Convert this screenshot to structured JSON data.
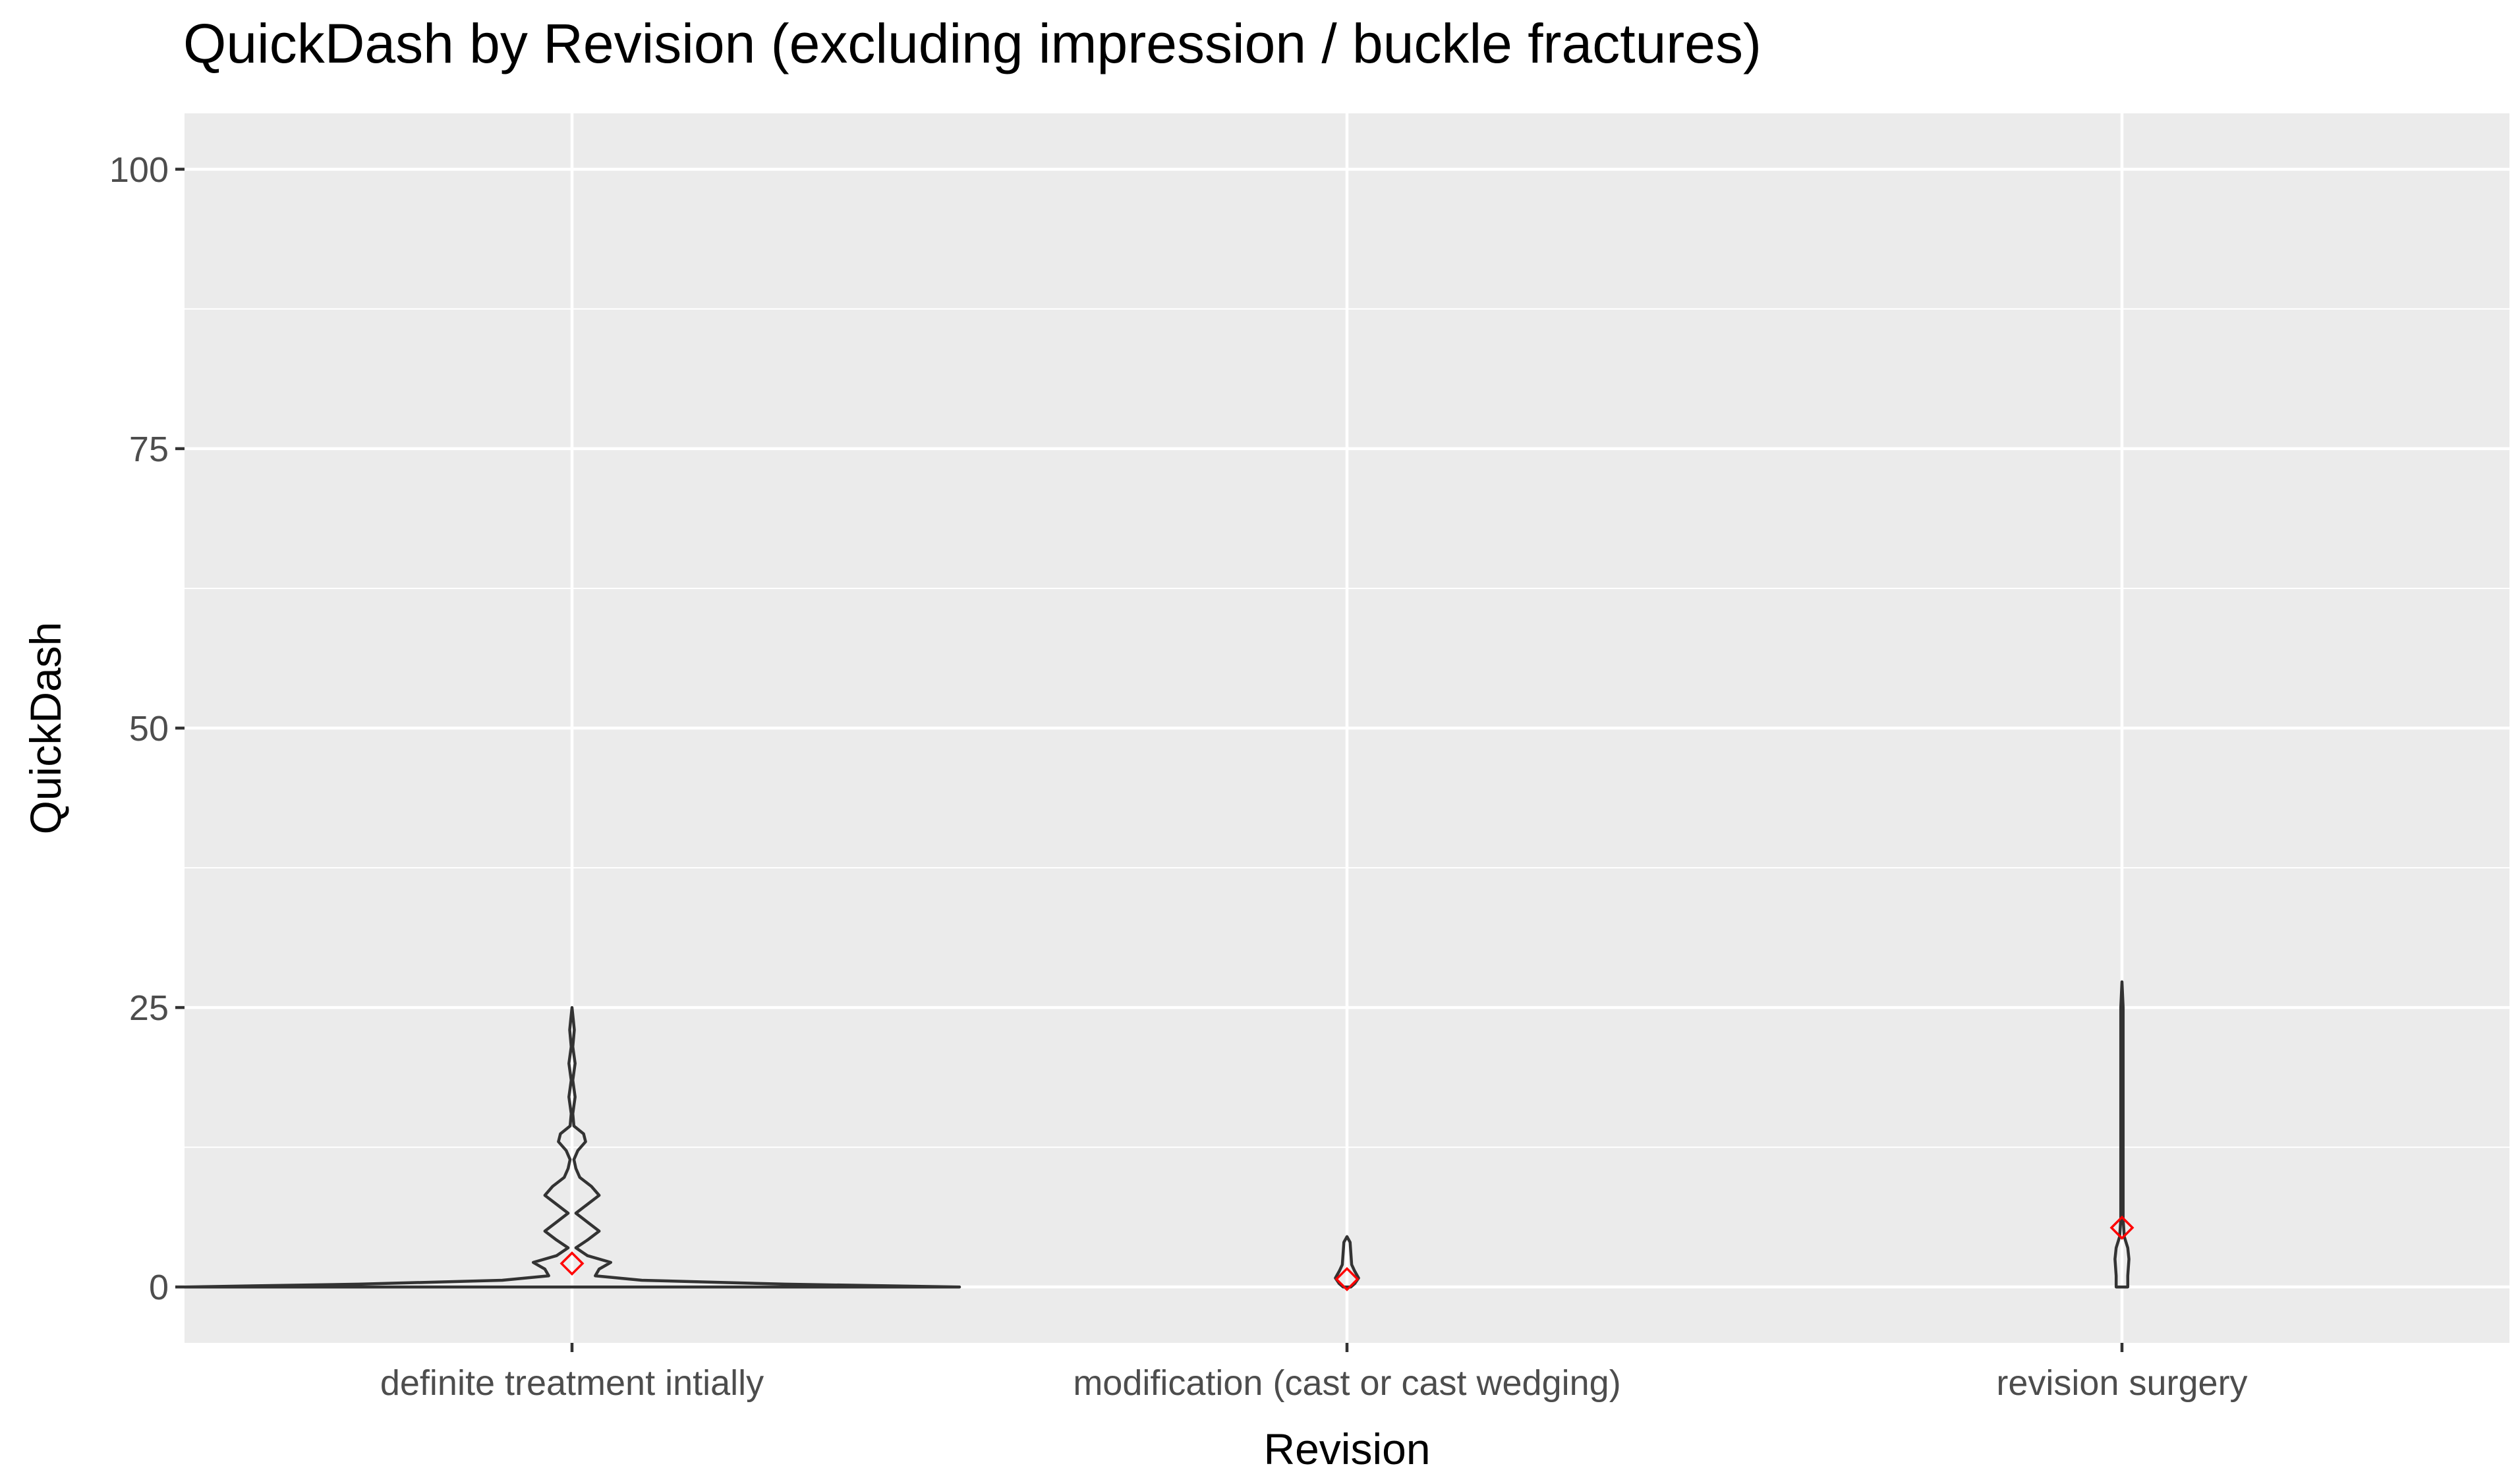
{
  "chart_data": {
    "type": "violin",
    "title": "QuickDash by Revision (excluding impression / buckle fractures)",
    "xlabel": "Revision",
    "ylabel": "QuickDash",
    "ylim": [
      -5,
      105
    ],
    "yticks": [
      0,
      25,
      50,
      75,
      100
    ],
    "categories": [
      "definite treatment intially",
      "modification (cast or cast wedging)",
      "revision surgery"
    ],
    "grid": true,
    "legend": "none",
    "colors": {
      "panel": "#ebebeb",
      "grid": "#ffffff",
      "outline": "#333333",
      "mean_marker": "#ff0000",
      "tick_label": "#4d4d4d"
    },
    "violins": [
      {
        "category": "definite treatment intially",
        "mean": 2.1,
        "min": 0,
        "max": 25,
        "density_profile": [
          [
            0,
            1.0
          ],
          [
            0.25,
            0.55
          ],
          [
            0.6,
            0.18
          ],
          [
            1.0,
            0.06
          ],
          [
            1.6,
            0.07
          ],
          [
            2.2,
            0.1
          ],
          [
            2.8,
            0.04
          ],
          [
            3.5,
            0.01
          ],
          [
            4.2,
            0.04
          ],
          [
            5.0,
            0.07
          ],
          [
            5.8,
            0.04
          ],
          [
            6.6,
            0.01
          ],
          [
            7.4,
            0.04
          ],
          [
            8.2,
            0.07
          ],
          [
            9.0,
            0.05
          ],
          [
            9.8,
            0.02
          ],
          [
            10.6,
            0.01
          ],
          [
            11.4,
            0.005
          ],
          [
            12.2,
            0.015
          ],
          [
            13.0,
            0.035
          ],
          [
            13.7,
            0.03
          ],
          [
            14.4,
            0.005
          ],
          [
            15.5,
            0.002
          ],
          [
            17.0,
            0.008
          ],
          [
            18.5,
            0.002
          ],
          [
            20.0,
            0.008
          ],
          [
            21.5,
            0.002
          ],
          [
            23.0,
            0.006
          ],
          [
            24.0,
            0.003
          ],
          [
            25.0,
            0.0
          ]
        ]
      },
      {
        "category": "modification (cast or cast wedging)",
        "mean": 0.7,
        "min": 0,
        "max": 4.5,
        "density_profile": [
          [
            0,
            0.01
          ],
          [
            0.3,
            0.02
          ],
          [
            0.8,
            0.03
          ],
          [
            1.4,
            0.02
          ],
          [
            2.0,
            0.012
          ],
          [
            3.0,
            0.01
          ],
          [
            4.0,
            0.008
          ],
          [
            4.5,
            0.0
          ]
        ]
      },
      {
        "category": "revision surgery",
        "mean": 5.3,
        "min": 0,
        "max": 27.3,
        "density_profile": [
          [
            0,
            0.015
          ],
          [
            1.0,
            0.015
          ],
          [
            2.5,
            0.018
          ],
          [
            3.5,
            0.015
          ],
          [
            4.5,
            0.006
          ],
          [
            6.0,
            0.003
          ],
          [
            9.0,
            0.003
          ],
          [
            15.0,
            0.003
          ],
          [
            20.0,
            0.003
          ],
          [
            25.0,
            0.003
          ],
          [
            27.3,
            0.0
          ]
        ]
      }
    ]
  }
}
